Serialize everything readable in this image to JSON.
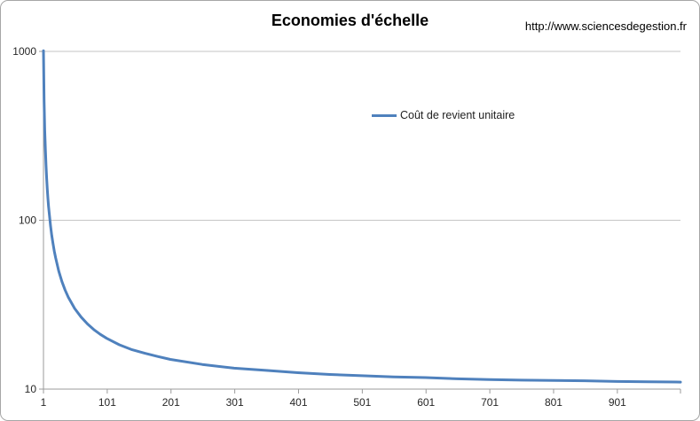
{
  "header": {
    "source_url": "http://www.sciencesdegestion.fr"
  },
  "chart_data": {
    "type": "line",
    "title": "Economies d'échelle",
    "xlabel": "",
    "ylabel": "",
    "x_scale": "linear",
    "y_scale": "log",
    "xlim": [
      1,
      1000
    ],
    "ylim": [
      10,
      1000
    ],
    "x_ticks": [
      1,
      101,
      201,
      301,
      401,
      501,
      601,
      701,
      801,
      901
    ],
    "y_ticks": [
      10,
      100,
      1000
    ],
    "grid": "horizontal",
    "legend_position": "inside-top-center",
    "colors": {
      "line": "#4f81bd",
      "gridline": "#c6c6c6",
      "axis": "#9b9b9b",
      "label_text": "#262626"
    },
    "series": [
      {
        "name": "Coût de revient unitaire",
        "color": "#4f81bd",
        "comment_visible_behavior": "unit cost curve starting at 1000 for quantity 1, decaying toward ~11 at quantity 1000",
        "points": [
          [
            1,
            1010
          ],
          [
            2,
            510
          ],
          [
            3,
            343.3
          ],
          [
            4,
            260
          ],
          [
            5,
            210
          ],
          [
            6,
            176.7
          ],
          [
            7,
            152.9
          ],
          [
            8,
            135
          ],
          [
            9,
            121.1
          ],
          [
            10,
            110
          ],
          [
            12,
            93.3
          ],
          [
            14,
            81.4
          ],
          [
            16,
            72.5
          ],
          [
            18,
            65.6
          ],
          [
            20,
            60
          ],
          [
            25,
            50
          ],
          [
            30,
            43.3
          ],
          [
            35,
            38.6
          ],
          [
            40,
            35
          ],
          [
            50,
            30
          ],
          [
            60,
            26.7
          ],
          [
            70,
            24.3
          ],
          [
            80,
            22.5
          ],
          [
            90,
            21.1
          ],
          [
            100,
            20
          ],
          [
            120,
            18.3
          ],
          [
            140,
            17.1
          ],
          [
            160,
            16.3
          ],
          [
            180,
            15.6
          ],
          [
            200,
            15
          ],
          [
            250,
            14
          ],
          [
            300,
            13.3
          ],
          [
            350,
            12.9
          ],
          [
            400,
            12.5
          ],
          [
            450,
            12.2
          ],
          [
            500,
            12
          ],
          [
            550,
            11.8
          ],
          [
            600,
            11.7
          ],
          [
            650,
            11.5
          ],
          [
            700,
            11.4
          ],
          [
            750,
            11.3
          ],
          [
            800,
            11.25
          ],
          [
            850,
            11.2
          ],
          [
            900,
            11.1
          ],
          [
            950,
            11.05
          ],
          [
            1000,
            11
          ]
        ]
      }
    ]
  }
}
